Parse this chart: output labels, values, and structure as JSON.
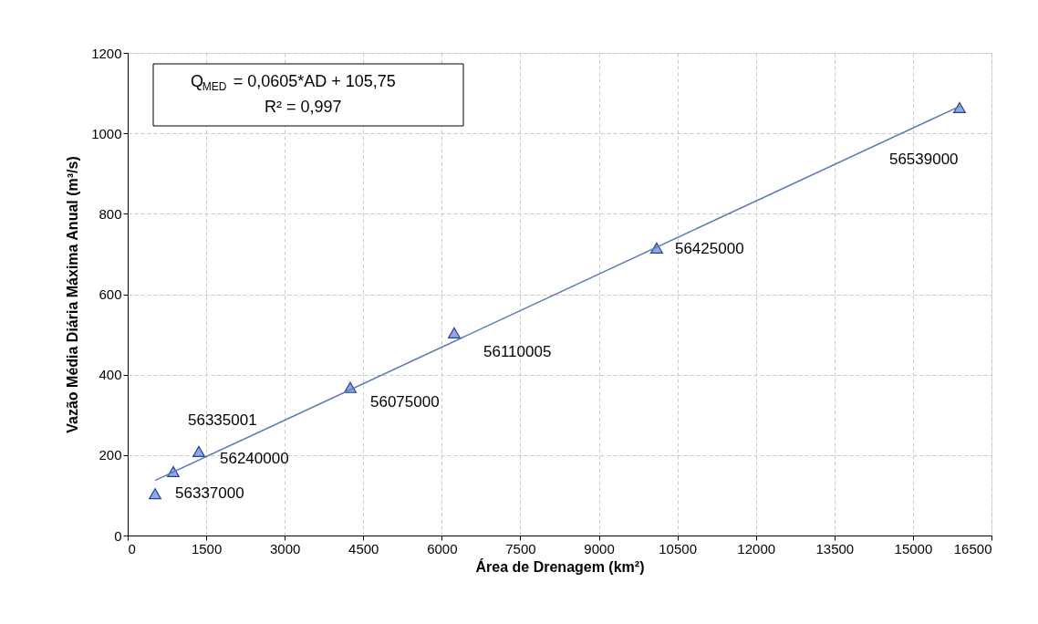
{
  "chart_data": {
    "type": "scatter",
    "xlabel": "Área de Drenagem (km²)",
    "ylabel": "Vazão Média Diária Máxima Anual (m³/s)",
    "x": [
      523,
      871,
      1359,
      4251,
      6237,
      10105,
      15889
    ],
    "series": [
      {
        "color": "#8ea9e8",
        "values": [
          104,
          159,
          209,
          368,
          504,
          715,
          1064
        ]
      },
      {
        "type": "line",
        "color": "#5a7cb5",
        "marker": "none",
        "x": [
          523,
          15889
        ],
        "values": [
          137,
          1067
        ]
      }
    ],
    "marker": "triangle",
    "xlim": [
      0,
      16500
    ],
    "xticks": [
      0,
      1500,
      3000,
      4500,
      6000,
      7500,
      9000,
      10500,
      12000,
      13500,
      15000,
      16500
    ],
    "ylim": [
      0,
      1200
    ],
    "yticks": [
      0,
      200,
      400,
      600,
      800,
      1000,
      1200
    ],
    "grid": true,
    "annotations": [
      {
        "text": "56337000",
        "x": 523,
        "y": 104
      },
      {
        "text": "56240000",
        "x": 871,
        "y": 159
      },
      {
        "text": "56335001",
        "x": 1359,
        "y": 209
      },
      {
        "text": "56075000",
        "x": 4251,
        "y": 368
      },
      {
        "text": "56110005",
        "x": 6237,
        "y": 504
      },
      {
        "text": "56425000",
        "x": 10105,
        "y": 715
      },
      {
        "text": "56539000",
        "x": 15889,
        "y": 1064
      },
      "Q$_{MED}$ = 0,0605*AD  + 105,75",
      "R² = 0,997"
    ]
  }
}
